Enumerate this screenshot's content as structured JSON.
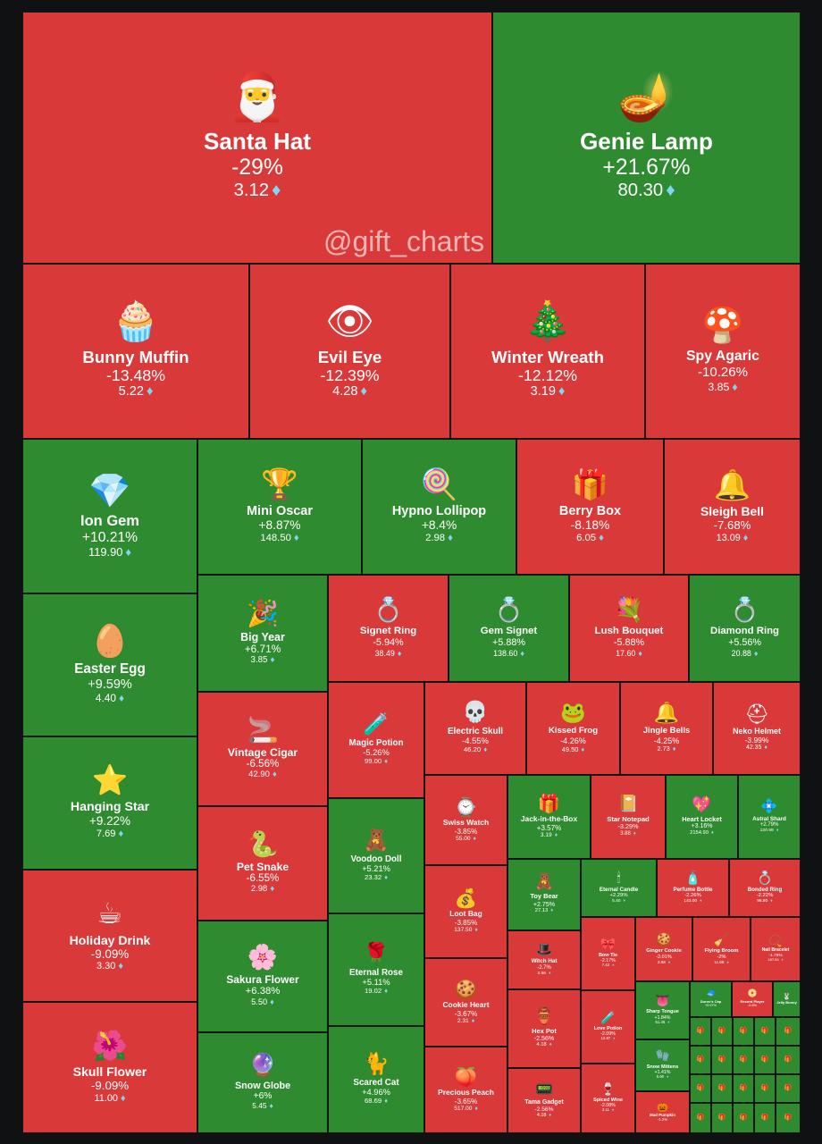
{
  "watermark": "@gift_charts",
  "colors": {
    "up": "#2f8b30",
    "down": "#da393a",
    "diamond": "#7fd6f5",
    "background": "#0f1113"
  },
  "currency_icon": "diamond-icon",
  "chart_data": {
    "type": "treemap",
    "items": [
      {
        "name": "Santa Hat",
        "change": "-29%",
        "price": "3.12",
        "trend": "down",
        "icon": "santa-hat-icon",
        "glyph": "🎅"
      },
      {
        "name": "Genie Lamp",
        "change": "+21.67%",
        "price": "80.30",
        "trend": "up",
        "icon": "genie-lamp-icon",
        "glyph": "🪔"
      },
      {
        "name": "Bunny Muffin",
        "change": "-13.48%",
        "price": "5.22",
        "trend": "down",
        "icon": "bunny-muffin-icon",
        "glyph": "🧁"
      },
      {
        "name": "Evil Eye",
        "change": "-12.39%",
        "price": "4.28",
        "trend": "down",
        "icon": "evil-eye-icon",
        "glyph": "👁"
      },
      {
        "name": "Winter Wreath",
        "change": "-12.12%",
        "price": "3.19",
        "trend": "down",
        "icon": "wreath-icon",
        "glyph": "🎄"
      },
      {
        "name": "Spy Agaric",
        "change": "-10.26%",
        "price": "3.85",
        "trend": "down",
        "icon": "mushroom-icon",
        "glyph": "🍄"
      },
      {
        "name": "Ion Gem",
        "change": "+10.21%",
        "price": "119.90",
        "trend": "up",
        "icon": "gem-icon",
        "glyph": "💎"
      },
      {
        "name": "Mini Oscar",
        "change": "+8.87%",
        "price": "148.50",
        "trend": "up",
        "icon": "trophy-icon",
        "glyph": "🏆"
      },
      {
        "name": "Hypno Lollipop",
        "change": "+8.4%",
        "price": "2.98",
        "trend": "up",
        "icon": "lollipop-icon",
        "glyph": "🍭"
      },
      {
        "name": "Berry Box",
        "change": "-8.18%",
        "price": "6.05",
        "trend": "down",
        "icon": "box-icon",
        "glyph": "🎁"
      },
      {
        "name": "Sleigh Bell",
        "change": "-7.68%",
        "price": "13.09",
        "trend": "down",
        "icon": "bell-icon",
        "glyph": "🔔"
      },
      {
        "name": "Easter Egg",
        "change": "+9.59%",
        "price": "4.40",
        "trend": "up",
        "icon": "egg-icon",
        "glyph": "🥚"
      },
      {
        "name": "Big Year",
        "change": "+6.71%",
        "price": "3.85",
        "trend": "up",
        "icon": "year-icon",
        "glyph": "🎉"
      },
      {
        "name": "Signet Ring",
        "change": "-5.94%",
        "price": "38.49",
        "trend": "down",
        "icon": "ring-icon",
        "glyph": "💍"
      },
      {
        "name": "Gem Signet",
        "change": "+5.88%",
        "price": "138.60",
        "trend": "up",
        "icon": "ring-icon",
        "glyph": "💍"
      },
      {
        "name": "Lush Bouquet",
        "change": "-5.88%",
        "price": "17.60",
        "trend": "down",
        "icon": "bouquet-icon",
        "glyph": "💐"
      },
      {
        "name": "Diamond Ring",
        "change": "+5.56%",
        "price": "20.88",
        "trend": "up",
        "icon": "ring-box-icon",
        "glyph": "💍"
      },
      {
        "name": "Hanging Star",
        "change": "+9.22%",
        "price": "7.69",
        "trend": "up",
        "icon": "star-icon",
        "glyph": "⭐"
      },
      {
        "name": "Vintage Cigar",
        "change": "-6.56%",
        "price": "42.90",
        "trend": "down",
        "icon": "cigar-icon",
        "glyph": "🚬"
      },
      {
        "name": "Magic Potion",
        "change": "-5.26%",
        "price": "99.00",
        "trend": "down",
        "icon": "potion-icon",
        "glyph": "🧪"
      },
      {
        "name": "Electric Skull",
        "change": "-4.55%",
        "price": "46.20",
        "trend": "down",
        "icon": "skull-icon",
        "glyph": "💀"
      },
      {
        "name": "Kissed Frog",
        "change": "-4.26%",
        "price": "49.50",
        "trend": "down",
        "icon": "frog-icon",
        "glyph": "🐸"
      },
      {
        "name": "Jingle Bells",
        "change": "-4.25%",
        "price": "2.73",
        "trend": "down",
        "icon": "bell-icon",
        "glyph": "🔔"
      },
      {
        "name": "Neko Helmet",
        "change": "-3.99%",
        "price": "42.35",
        "trend": "down",
        "icon": "helmet-icon",
        "glyph": "⛑"
      },
      {
        "name": "Pet Snake",
        "change": "-6.55%",
        "price": "2.98",
        "trend": "down",
        "icon": "snake-icon",
        "glyph": "🐍"
      },
      {
        "name": "Voodoo Doll",
        "change": "+5.21%",
        "price": "23.32",
        "trend": "up",
        "icon": "doll-icon",
        "glyph": "🧸"
      },
      {
        "name": "Swiss Watch",
        "change": "-3.85%",
        "price": "55.00",
        "trend": "down",
        "icon": "watch-icon",
        "glyph": "⌚"
      },
      {
        "name": "Jack-in-the-Box",
        "change": "+3.57%",
        "price": "3.19",
        "trend": "up",
        "icon": "jack-box-icon",
        "glyph": "🎁"
      },
      {
        "name": "Star Notepad",
        "change": "-3.29%",
        "price": "3.88",
        "trend": "down",
        "icon": "notepad-icon",
        "glyph": "📔"
      },
      {
        "name": "Heart Locket",
        "change": "+3.16%",
        "price": "2154.90",
        "trend": "up",
        "icon": "locket-icon",
        "glyph": "💖"
      },
      {
        "name": "Astral Shard",
        "change": "+2.79%",
        "price": "120.99",
        "trend": "up",
        "icon": "shard-icon",
        "glyph": "💠"
      },
      {
        "name": "Holiday Drink",
        "change": "-9.09%",
        "price": "3.30",
        "trend": "down",
        "icon": "drink-icon",
        "glyph": "☕"
      },
      {
        "name": "Sakura Flower",
        "change": "+6.38%",
        "price": "5.50",
        "trend": "up",
        "icon": "flower-icon",
        "glyph": "🌸"
      },
      {
        "name": "Eternal Rose",
        "change": "+5.11%",
        "price": "19.02",
        "trend": "up",
        "icon": "rose-icon",
        "glyph": "🌹"
      },
      {
        "name": "Loot Bag",
        "change": "-3.85%",
        "price": "137.50",
        "trend": "down",
        "icon": "bag-icon",
        "glyph": "💰"
      },
      {
        "name": "Toy Bear",
        "change": "+2.75%",
        "price": "27.13",
        "trend": "up",
        "icon": "bear-icon",
        "glyph": "🧸"
      },
      {
        "name": "Eternal Candle",
        "change": "+2.29%",
        "price": "5.40",
        "trend": "up",
        "icon": "candle-icon",
        "glyph": "🕯"
      },
      {
        "name": "Perfume Bottle",
        "change": "-2.26%",
        "price": "143.00",
        "trend": "down",
        "icon": "perfume-icon",
        "glyph": "🧴"
      },
      {
        "name": "Bonded Ring",
        "change": "-2.22%",
        "price": "96.80",
        "trend": "down",
        "icon": "ring-icon",
        "glyph": "💍"
      },
      {
        "name": "Witch Hat",
        "change": "-2.7%",
        "price": "3.96",
        "trend": "down",
        "icon": "witch-hat-icon",
        "glyph": "🎩"
      },
      {
        "name": "Bow Tie",
        "change": "-2.17%",
        "price": "7.42",
        "trend": "down",
        "icon": "bow-tie-icon",
        "glyph": "🎀"
      },
      {
        "name": "Ginger Cookie",
        "change": "-2.01%",
        "price": "2.68",
        "trend": "down",
        "icon": "cookie-icon",
        "glyph": "🍪"
      },
      {
        "name": "Flying Broom",
        "change": "-2%",
        "price": "11.66",
        "trend": "down",
        "icon": "broom-icon",
        "glyph": "🧹"
      },
      {
        "name": "Nail Bracelet",
        "change": "-1.79%",
        "price": "187.00",
        "trend": "down",
        "icon": "bracelet-icon",
        "glyph": "📿"
      },
      {
        "name": "Cookie Heart",
        "change": "-3.67%",
        "price": "2.31",
        "trend": "down",
        "icon": "cookie-heart-icon",
        "glyph": "🍪"
      },
      {
        "name": "Hex Pot",
        "change": "-2.56%",
        "price": "4.18",
        "trend": "down",
        "icon": "pot-icon",
        "glyph": "🏺"
      },
      {
        "name": "Love Potion",
        "change": "-2.09%",
        "price": "12.87",
        "trend": "down",
        "icon": "potion-icon",
        "glyph": "🧪"
      },
      {
        "name": "Sharp Tongue",
        "change": "+1.84%",
        "price": "61.46",
        "trend": "up",
        "icon": "tongue-icon",
        "glyph": "👅"
      },
      {
        "name": "Snow Mittens",
        "change": "+1.41%",
        "price": "5.90",
        "trend": "up",
        "icon": "mittens-icon",
        "glyph": "🧤"
      },
      {
        "name": "Skull Flower",
        "change": "-9.09%",
        "price": "11.00",
        "trend": "down",
        "icon": "skull-flower-icon",
        "glyph": "🌺"
      },
      {
        "name": "Snow Globe",
        "change": "+6%",
        "price": "5.45",
        "trend": "up",
        "icon": "snow-globe-icon",
        "glyph": "🔮"
      },
      {
        "name": "Scared Cat",
        "change": "+4.96%",
        "price": "68.69",
        "trend": "up",
        "icon": "cat-icon",
        "glyph": "🐈"
      },
      {
        "name": "Precious Peach",
        "change": "-3.65%",
        "price": "517.00",
        "trend": "down",
        "icon": "peach-icon",
        "glyph": "🍑"
      },
      {
        "name": "Tama Gadget",
        "change": "-2.56%",
        "price": "4.18",
        "trend": "down",
        "icon": "gadget-icon",
        "glyph": "📟"
      },
      {
        "name": "Spiced Wine",
        "change": "-2.08%",
        "price": "3.11",
        "trend": "down",
        "icon": "wine-icon",
        "glyph": "🍷"
      },
      {
        "name": "Mad Pumpkin",
        "change": "-1.2%",
        "price": "",
        "trend": "down",
        "icon": "pumpkin-icon",
        "glyph": "🎃"
      },
      {
        "name": "Durov's Cap",
        "change": "+0.97%",
        "price": "",
        "trend": "up",
        "icon": "cap-icon",
        "glyph": "🧢"
      },
      {
        "name": "Record Player",
        "change": "-0.8%",
        "price": "",
        "trend": "down",
        "icon": "record-player-icon",
        "glyph": "📀"
      },
      {
        "name": "Jelly Bunny",
        "change": "",
        "price": "",
        "trend": "up",
        "icon": "bunny-icon",
        "glyph": "🐰"
      },
      {
        "name": "",
        "change": "",
        "price": "",
        "trend": "up",
        "icon": "gift-icon",
        "glyph": "🎁"
      },
      {
        "name": "",
        "change": "",
        "price": "",
        "trend": "up",
        "icon": "gift-icon",
        "glyph": "🎁"
      },
      {
        "name": "",
        "change": "",
        "price": "",
        "trend": "up",
        "icon": "gift-icon",
        "glyph": "🎁"
      },
      {
        "name": "",
        "change": "",
        "price": "",
        "trend": "up",
        "icon": "gift-icon",
        "glyph": "🎁"
      },
      {
        "name": "",
        "change": "",
        "price": "",
        "trend": "up",
        "icon": "gift-icon",
        "glyph": "🎁"
      },
      {
        "name": "",
        "change": "",
        "price": "",
        "trend": "up",
        "icon": "gift-icon",
        "glyph": "🎁"
      },
      {
        "name": "",
        "change": "",
        "price": "",
        "trend": "up",
        "icon": "gift-icon",
        "glyph": "🎁"
      },
      {
        "name": "",
        "change": "",
        "price": "",
        "trend": "up",
        "icon": "gift-icon",
        "glyph": "🎁"
      },
      {
        "name": "",
        "change": "",
        "price": "",
        "trend": "up",
        "icon": "gift-icon",
        "glyph": "🎁"
      },
      {
        "name": "",
        "change": "",
        "price": "",
        "trend": "up",
        "icon": "gift-icon",
        "glyph": "🎁"
      },
      {
        "name": "",
        "change": "",
        "price": "",
        "trend": "up",
        "icon": "gift-icon",
        "glyph": "🎁"
      },
      {
        "name": "",
        "change": "",
        "price": "",
        "trend": "up",
        "icon": "gift-icon",
        "glyph": "🎁"
      },
      {
        "name": "",
        "change": "",
        "price": "",
        "trend": "up",
        "icon": "gift-icon",
        "glyph": "🎁"
      },
      {
        "name": "",
        "change": "",
        "price": "",
        "trend": "up",
        "icon": "gift-icon",
        "glyph": "🎁"
      },
      {
        "name": "",
        "change": "",
        "price": "",
        "trend": "up",
        "icon": "gift-icon",
        "glyph": "🎁"
      },
      {
        "name": "",
        "change": "",
        "price": "",
        "trend": "up",
        "icon": "gift-icon",
        "glyph": "🎁"
      },
      {
        "name": "",
        "change": "",
        "price": "",
        "trend": "up",
        "icon": "gift-icon",
        "glyph": "🎁"
      },
      {
        "name": "",
        "change": "",
        "price": "",
        "trend": "up",
        "icon": "gift-icon",
        "glyph": "🎁"
      },
      {
        "name": "",
        "change": "",
        "price": "",
        "trend": "up",
        "icon": "gift-icon",
        "glyph": "🎁"
      },
      {
        "name": "",
        "change": "",
        "price": "",
        "trend": "up",
        "icon": "gift-icon",
        "glyph": "🎁"
      },
      {
        "name": "",
        "change": "",
        "price": "",
        "trend": "up",
        "icon": "gift-icon",
        "glyph": "🎁"
      },
      {
        "name": "",
        "change": "",
        "price": "",
        "trend": "up",
        "icon": "gift-icon",
        "glyph": "🎁"
      },
      {
        "name": "",
        "change": "",
        "price": "",
        "trend": "up",
        "icon": "gift-icon",
        "glyph": "🎁"
      },
      {
        "name": "",
        "change": "",
        "price": "",
        "trend": "up",
        "icon": "gift-icon",
        "glyph": "🎁"
      }
    ]
  }
}
